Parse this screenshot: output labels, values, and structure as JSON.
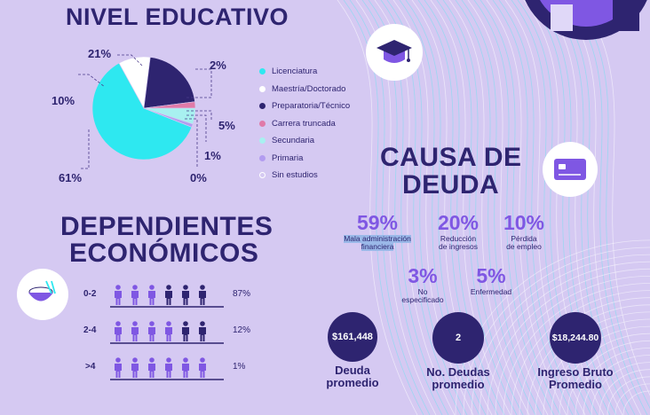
{
  "education": {
    "title": "NIVEL EDUCATIVO",
    "labels": {
      "p21": "21%",
      "p2": "2%",
      "p10": "10%",
      "p5": "5%",
      "p1": "1%",
      "p61": "61%",
      "p0": "0%"
    },
    "legend": [
      {
        "label": "Licenciatura",
        "color": "#2ee8f0"
      },
      {
        "label": "Maestría/Doctorado",
        "color": "#ffffff"
      },
      {
        "label": "Preparatoria/Técnico",
        "color": "#2e2470"
      },
      {
        "label": "Carrera truncada",
        "color": "#e07aa8"
      },
      {
        "label": "Secundaria",
        "color": "#a8f0f0"
      },
      {
        "label": "Primaria",
        "color": "#b29cf0"
      },
      {
        "label": "Sin estudios",
        "color": "#ffffff"
      }
    ]
  },
  "chart_data": {
    "type": "pie",
    "categories": [
      "Licenciatura",
      "Maestría/Doctorado",
      "Preparatoria/Técnico",
      "Carrera truncada",
      "Secundaria",
      "Primaria",
      "Sin estudios"
    ],
    "values": [
      61,
      10,
      21,
      2,
      5,
      1,
      0
    ],
    "colors": [
      "#2ee8f0",
      "#ffffff",
      "#2e2470",
      "#e07aa8",
      "#a8f0f0",
      "#b29cf0",
      "#ffffff"
    ],
    "title": "NIVEL EDUCATIVO",
    "legend": "right"
  },
  "dependents": {
    "title_line1": "DEPENDIENTES",
    "title_line2": "ECONÓMICOS",
    "rows": [
      {
        "label": "0-2",
        "percent": "87%",
        "value": 87
      },
      {
        "label": "2-4",
        "percent": "12%",
        "value": 12
      },
      {
        "label": ">4",
        "percent": "1%",
        "value": 1
      }
    ]
  },
  "debt_cause": {
    "title_line1": "CAUSA DE",
    "title_line2": "DEUDA",
    "items": [
      {
        "pct": "59%",
        "label_lines": [
          "Mala administración",
          "financiera"
        ]
      },
      {
        "pct": "20%",
        "label_lines": [
          "Reducción",
          "de ingresos"
        ]
      },
      {
        "pct": "10%",
        "label_lines": [
          "Pérdida",
          "de empleo"
        ]
      },
      {
        "pct": "3%",
        "label_lines": [
          "No",
          "especificado"
        ]
      },
      {
        "pct": "5%",
        "label_lines": [
          "Enfermedad"
        ]
      }
    ]
  },
  "stats": [
    {
      "value": "$161,448",
      "label_lines": [
        "Deuda",
        "promedio"
      ]
    },
    {
      "value": "2",
      "label_lines": [
        "No. Deudas",
        "promedio"
      ]
    },
    {
      "value": "$18,244.80",
      "label_lines": [
        "Ingreso Bruto",
        "Promedio"
      ]
    }
  ],
  "icons": {
    "graduation": "graduation-cap-icon",
    "card": "credit-card-icon",
    "bowl": "rice-bowl-icon",
    "person": "person-icon"
  }
}
